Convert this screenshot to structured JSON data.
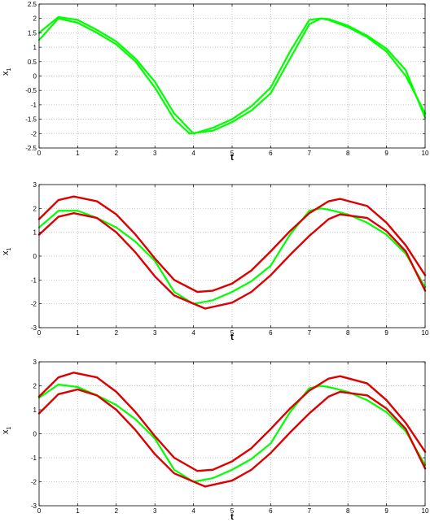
{
  "chart_data": [
    {
      "type": "line",
      "xlabel": "t",
      "ylabel": "x",
      "ylabel_sub": "1",
      "xlim": [
        0,
        10
      ],
      "ylim": [
        -2.5,
        2.5
      ],
      "xticks": [
        0,
        1,
        2,
        3,
        4,
        5,
        6,
        7,
        8,
        9,
        10
      ],
      "yticks": [
        -2.5,
        -2,
        -1.5,
        -1,
        -0.5,
        0,
        0.5,
        1,
        1.5,
        2,
        2.5
      ],
      "grid": true,
      "series": [
        {
          "color": "#00ff00",
          "x": [
            0,
            0.5,
            1,
            1.5,
            2,
            2.5,
            3,
            3.5,
            3.9,
            4.5,
            5,
            5.5,
            6,
            6.5,
            7,
            7.3,
            7.5,
            8,
            8.5,
            9,
            9.5,
            10
          ],
          "y": [
            1.25,
            2.0,
            1.85,
            1.5,
            1.1,
            0.5,
            -0.4,
            -1.5,
            -2.0,
            -1.9,
            -1.6,
            -1.2,
            -0.6,
            0.6,
            1.8,
            2.0,
            1.98,
            1.75,
            1.4,
            0.95,
            0.2,
            -1.45
          ]
        },
        {
          "color": "#00ff00",
          "x": [
            0,
            0.5,
            1,
            1.5,
            2,
            2.5,
            3,
            3.5,
            4,
            4.5,
            5,
            5.5,
            6,
            6.5,
            7,
            7.3,
            7.5,
            8,
            8.5,
            9,
            9.5,
            10
          ],
          "y": [
            1.5,
            2.05,
            1.95,
            1.6,
            1.2,
            0.6,
            -0.2,
            -1.3,
            -2.0,
            -1.8,
            -1.5,
            -1.05,
            -0.4,
            0.85,
            1.95,
            2.0,
            1.95,
            1.7,
            1.35,
            0.85,
            0.0,
            -1.3
          ]
        }
      ]
    },
    {
      "type": "line",
      "xlabel": "t",
      "ylabel": "x",
      "ylabel_sub": "1",
      "xlim": [
        0,
        10
      ],
      "ylim": [
        -3,
        3
      ],
      "xticks": [
        0,
        1,
        2,
        3,
        4,
        5,
        6,
        7,
        8,
        9,
        10
      ],
      "yticks": [
        -3,
        -2,
        -1,
        0,
        1,
        2,
        3
      ],
      "grid": true,
      "series": [
        {
          "color": "#00ff00",
          "x": [
            0,
            0.5,
            1,
            1.5,
            2,
            2.5,
            3,
            3.5,
            4,
            4.5,
            5,
            5.5,
            6,
            6.5,
            7,
            7.3,
            7.5,
            8,
            8.5,
            9,
            9.5,
            10
          ],
          "y": [
            1.2,
            1.9,
            1.9,
            1.6,
            1.2,
            0.6,
            -0.2,
            -1.5,
            -2.0,
            -1.85,
            -1.5,
            -1.05,
            -0.4,
            0.9,
            1.9,
            2.0,
            1.95,
            1.75,
            1.4,
            0.9,
            0.1,
            -1.3
          ]
        },
        {
          "color": "#dd0000",
          "x": [
            0,
            0.5,
            0.9,
            1.5,
            2,
            2.5,
            3,
            3.5,
            4.1,
            4.5,
            5,
            5.5,
            6,
            6.5,
            7,
            7.5,
            7.8,
            8.5,
            9,
            9.5,
            10
          ],
          "y": [
            1.55,
            2.35,
            2.5,
            2.3,
            1.75,
            0.9,
            -0.1,
            -1.0,
            -1.5,
            -1.45,
            -1.15,
            -0.6,
            0.2,
            1.05,
            1.8,
            2.3,
            2.4,
            2.1,
            1.4,
            0.45,
            -0.8
          ]
        },
        {
          "color": "#dd0000",
          "x": [
            0,
            0.5,
            0.9,
            1.5,
            2,
            2.5,
            3,
            3.5,
            4.3,
            5,
            5.5,
            6,
            6.5,
            7,
            7.5,
            7.8,
            8.5,
            9,
            9.5,
            10
          ],
          "y": [
            0.9,
            1.65,
            1.8,
            1.6,
            1.0,
            0.15,
            -0.85,
            -1.65,
            -2.2,
            -1.95,
            -1.5,
            -0.8,
            0.05,
            0.85,
            1.55,
            1.75,
            1.6,
            1.05,
            0.2,
            -1.45
          ]
        }
      ]
    },
    {
      "type": "line",
      "xlabel": "t",
      "ylabel": "x",
      "ylabel_sub": "1",
      "xlim": [
        0,
        10
      ],
      "ylim": [
        -3,
        3
      ],
      "xticks": [
        0,
        1,
        2,
        3,
        4,
        5,
        6,
        7,
        8,
        9,
        10
      ],
      "yticks": [
        -3,
        -2,
        -1,
        0,
        1,
        2,
        3
      ],
      "grid": true,
      "series": [
        {
          "color": "#00ff00",
          "x": [
            0,
            0.5,
            1,
            1.5,
            2,
            2.5,
            3,
            3.5,
            4,
            4.5,
            5,
            5.5,
            6,
            6.5,
            7,
            7.3,
            7.5,
            8,
            8.5,
            9,
            9.5,
            10
          ],
          "y": [
            1.5,
            2.05,
            1.95,
            1.6,
            1.2,
            0.6,
            -0.2,
            -1.5,
            -2.0,
            -1.85,
            -1.5,
            -1.05,
            -0.4,
            0.9,
            1.9,
            2.0,
            1.95,
            1.75,
            1.4,
            0.9,
            0.1,
            -1.3
          ]
        },
        {
          "color": "#dd0000",
          "x": [
            0,
            0.5,
            0.9,
            1.5,
            2,
            2.5,
            3,
            3.5,
            4.1,
            4.5,
            5,
            5.5,
            6,
            6.5,
            7,
            7.5,
            7.8,
            8.5,
            9,
            9.5,
            10
          ],
          "y": [
            1.55,
            2.35,
            2.55,
            2.35,
            1.75,
            0.9,
            -0.1,
            -1.0,
            -1.55,
            -1.5,
            -1.15,
            -0.6,
            0.2,
            1.05,
            1.8,
            2.3,
            2.4,
            2.1,
            1.4,
            0.45,
            -0.75
          ]
        },
        {
          "color": "#dd0000",
          "x": [
            0,
            0.5,
            1,
            1.5,
            2,
            2.5,
            3,
            3.5,
            4.3,
            5,
            5.5,
            6,
            6.5,
            7,
            7.5,
            7.8,
            8.5,
            9,
            9.5,
            10
          ],
          "y": [
            0.85,
            1.65,
            1.85,
            1.6,
            1.0,
            0.15,
            -0.85,
            -1.65,
            -2.2,
            -1.95,
            -1.5,
            -0.8,
            0.05,
            0.85,
            1.55,
            1.75,
            1.6,
            1.05,
            0.2,
            -1.45
          ]
        }
      ]
    }
  ]
}
